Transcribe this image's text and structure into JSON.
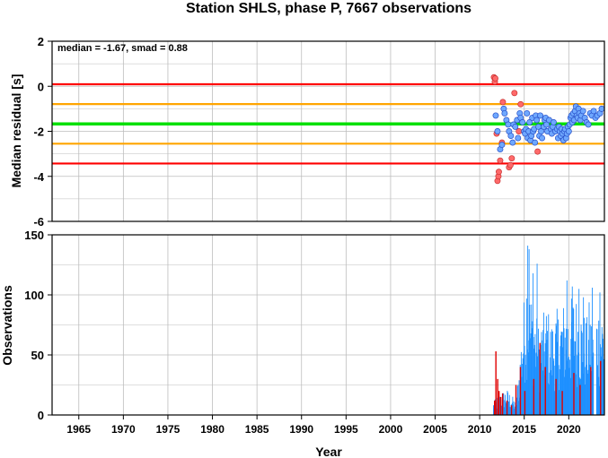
{
  "title": "Station SHLS, phase P, 7667 observations",
  "colors": {
    "red": "#ff0000",
    "orange": "#ffa500",
    "green": "#00e000",
    "blue_point": "#6fa8ff",
    "red_point": "#ff6a6a",
    "blue_bar": "#1e90ff",
    "red_bar": "#e00000",
    "grid": "#bdbdbd"
  },
  "chart_data": [
    {
      "type": "scatter",
      "ylabel": "Median residual [s]",
      "annotation": "median = -1.67, smad = 0.88",
      "xlim": [
        1962,
        2024
      ],
      "ylim": [
        -6,
        2
      ],
      "yticks": [
        2,
        0,
        -2,
        -4,
        -6
      ],
      "grid": true,
      "hlines": [
        {
          "value": 0.09,
          "color": "red"
        },
        {
          "value": -0.79,
          "color": "orange"
        },
        {
          "value": -1.67,
          "color": "green"
        },
        {
          "value": -2.55,
          "color": "orange"
        },
        {
          "value": -3.43,
          "color": "red"
        }
      ],
      "series": [
        {
          "color": "red_point",
          "points": [
            [
              2011.6,
              0.4
            ],
            [
              2011.7,
              0.2
            ],
            [
              2011.75,
              0.35
            ],
            [
              2011.9,
              -2.1
            ],
            [
              2012.0,
              -4.2
            ],
            [
              2012.1,
              -4.0
            ],
            [
              2012.15,
              -3.8
            ],
            [
              2012.3,
              -3.3
            ],
            [
              2012.5,
              -2.5
            ],
            [
              2012.6,
              -0.7
            ],
            [
              2013.3,
              -3.6
            ],
            [
              2013.45,
              -3.5
            ],
            [
              2013.6,
              -3.2
            ],
            [
              2013.9,
              -0.3
            ],
            [
              2014.4,
              -2.0
            ],
            [
              2014.6,
              -0.8
            ],
            [
              2016.5,
              -2.9
            ]
          ]
        },
        {
          "color": "blue_point",
          "points": [
            [
              2011.8,
              -1.3
            ],
            [
              2012.0,
              -2.0
            ],
            [
              2012.3,
              -2.8
            ],
            [
              2012.5,
              -2.6
            ],
            [
              2012.7,
              -1.0
            ],
            [
              2012.8,
              -1.2
            ],
            [
              2013.0,
              -1.5
            ],
            [
              2013.2,
              -1.7
            ],
            [
              2013.3,
              -2.0
            ],
            [
              2013.5,
              -2.2
            ],
            [
              2013.7,
              -2.5
            ],
            [
              2013.8,
              -1.7
            ],
            [
              2014.0,
              -1.8
            ],
            [
              2014.2,
              -1.5
            ],
            [
              2014.3,
              -2.3
            ],
            [
              2014.5,
              -1.2
            ],
            [
              2014.6,
              -1.4
            ],
            [
              2014.8,
              -1.6
            ],
            [
              2015.0,
              -2.0
            ],
            [
              2015.1,
              -2.1
            ],
            [
              2015.2,
              -1.9
            ],
            [
              2015.3,
              -1.2
            ],
            [
              2015.4,
              -2.3
            ],
            [
              2015.5,
              -2.0
            ],
            [
              2015.6,
              -1.6
            ],
            [
              2015.7,
              -2.4
            ],
            [
              2015.8,
              -2.2
            ],
            [
              2015.9,
              -1.4
            ],
            [
              2016.0,
              -2.0
            ],
            [
              2016.1,
              -1.9
            ],
            [
              2016.2,
              -2.5
            ],
            [
              2016.3,
              -1.3
            ],
            [
              2016.4,
              -1.5
            ],
            [
              2016.6,
              -1.8
            ],
            [
              2016.7,
              -2.2
            ],
            [
              2016.8,
              -1.3
            ],
            [
              2016.9,
              -2.0
            ],
            [
              2017.0,
              -2.3
            ],
            [
              2017.2,
              -1.8
            ],
            [
              2017.3,
              -1.5
            ],
            [
              2017.4,
              -1.4
            ],
            [
              2017.5,
              -1.7
            ],
            [
              2017.6,
              -2.0
            ],
            [
              2017.8,
              -1.5
            ],
            [
              2018.0,
              -1.9
            ],
            [
              2018.1,
              -2.1
            ],
            [
              2018.2,
              -1.8
            ],
            [
              2018.3,
              -1.6
            ],
            [
              2018.5,
              -2.0
            ],
            [
              2018.7,
              -1.9
            ],
            [
              2018.8,
              -2.3
            ],
            [
              2018.9,
              -1.8
            ],
            [
              2019.0,
              -2.0
            ],
            [
              2019.1,
              -2.2
            ],
            [
              2019.2,
              -1.9
            ],
            [
              2019.3,
              -2.1
            ],
            [
              2019.4,
              -2.4
            ],
            [
              2019.5,
              -2.0
            ],
            [
              2019.6,
              -1.9
            ],
            [
              2019.7,
              -2.3
            ],
            [
              2019.8,
              -2.1
            ],
            [
              2019.9,
              -1.8
            ],
            [
              2020.0,
              -2.0
            ],
            [
              2020.1,
              -1.7
            ],
            [
              2020.2,
              -1.4
            ],
            [
              2020.3,
              -1.3
            ],
            [
              2020.4,
              -1.6
            ],
            [
              2020.5,
              -1.2
            ],
            [
              2020.6,
              -1.5
            ],
            [
              2020.7,
              -1.1
            ],
            [
              2020.8,
              -0.9
            ],
            [
              2020.9,
              -1.3
            ],
            [
              2021.0,
              -1.4
            ],
            [
              2021.1,
              -1.0
            ],
            [
              2021.2,
              -1.2
            ],
            [
              2021.3,
              -1.5
            ],
            [
              2021.4,
              -1.3
            ],
            [
              2021.6,
              -1.1
            ],
            [
              2021.8,
              -1.4
            ],
            [
              2022.0,
              -1.6
            ],
            [
              2022.2,
              -1.7
            ],
            [
              2022.4,
              -1.2
            ],
            [
              2022.6,
              -1.3
            ],
            [
              2022.8,
              -1.1
            ],
            [
              2023.0,
              -1.4
            ],
            [
              2023.2,
              -1.3
            ],
            [
              2023.5,
              -1.2
            ],
            [
              2023.7,
              -1.0
            ]
          ]
        }
      ]
    },
    {
      "type": "bar",
      "ylabel": "Observations",
      "xlabel": "Year",
      "xlim": [
        1962,
        2024
      ],
      "ylim": [
        0,
        150
      ],
      "yticks": [
        150,
        100,
        50,
        0
      ],
      "xticks": [
        1965,
        1970,
        1975,
        1980,
        1985,
        1990,
        1995,
        2000,
        2005,
        2010,
        2015,
        2020
      ],
      "grid": true,
      "bar_width_years": 0.06,
      "series": [
        {
          "color": "blue_bar",
          "profile": [
            [
              2011.5,
              10
            ],
            [
              2012.0,
              15
            ],
            [
              2012.5,
              18
            ],
            [
              2013.0,
              20
            ],
            [
              2013.5,
              16
            ],
            [
              2014.0,
              10
            ],
            [
              2014.4,
              40
            ],
            [
              2014.8,
              80
            ],
            [
              2015.0,
              95
            ],
            [
              2015.2,
              120
            ],
            [
              2015.5,
              100
            ],
            [
              2016.0,
              90
            ],
            [
              2016.5,
              70
            ],
            [
              2017.0,
              75
            ],
            [
              2017.5,
              85
            ],
            [
              2018.0,
              72
            ],
            [
              2018.5,
              80
            ],
            [
              2019.0,
              82
            ],
            [
              2019.5,
              88
            ],
            [
              2020.0,
              85
            ],
            [
              2020.5,
              95
            ],
            [
              2021.0,
              90
            ],
            [
              2021.5,
              80
            ],
            [
              2022.0,
              75
            ],
            [
              2022.3,
              90
            ],
            [
              2022.6,
              70
            ],
            [
              2023.0,
              85
            ],
            [
              2023.5,
              88
            ],
            [
              2023.9,
              85
            ]
          ],
          "gaps": [
            [
              2022.75,
              2023.05
            ]
          ],
          "peaks": [
            [
              2015.35,
              141
            ],
            [
              2015.5,
              138
            ],
            [
              2015.95,
              118
            ],
            [
              2016.4,
              126
            ],
            [
              2019.75,
              112
            ],
            [
              2020.35,
              107
            ],
            [
              2021.1,
              105
            ],
            [
              2021.6,
              98
            ],
            [
              2022.6,
              106
            ],
            [
              2023.45,
              102
            ]
          ]
        },
        {
          "color": "red_bar",
          "bars": [
            [
              2011.75,
              53
            ],
            [
              2011.6,
              12
            ],
            [
              2011.95,
              30
            ],
            [
              2012.1,
              20
            ],
            [
              2012.3,
              15
            ],
            [
              2012.5,
              18
            ],
            [
              2013.0,
              12
            ],
            [
              2013.5,
              8
            ],
            [
              2014.0,
              25
            ],
            [
              2014.5,
              40
            ],
            [
              2015.0,
              20
            ],
            [
              2016.0,
              30
            ],
            [
              2016.7,
              60
            ],
            [
              2017.3,
              40
            ],
            [
              2018.5,
              30
            ],
            [
              2019.2,
              20
            ],
            [
              2020.5,
              35
            ],
            [
              2021.2,
              25
            ],
            [
              2022.4,
              40
            ],
            [
              2023.5,
              45
            ]
          ]
        }
      ]
    }
  ]
}
